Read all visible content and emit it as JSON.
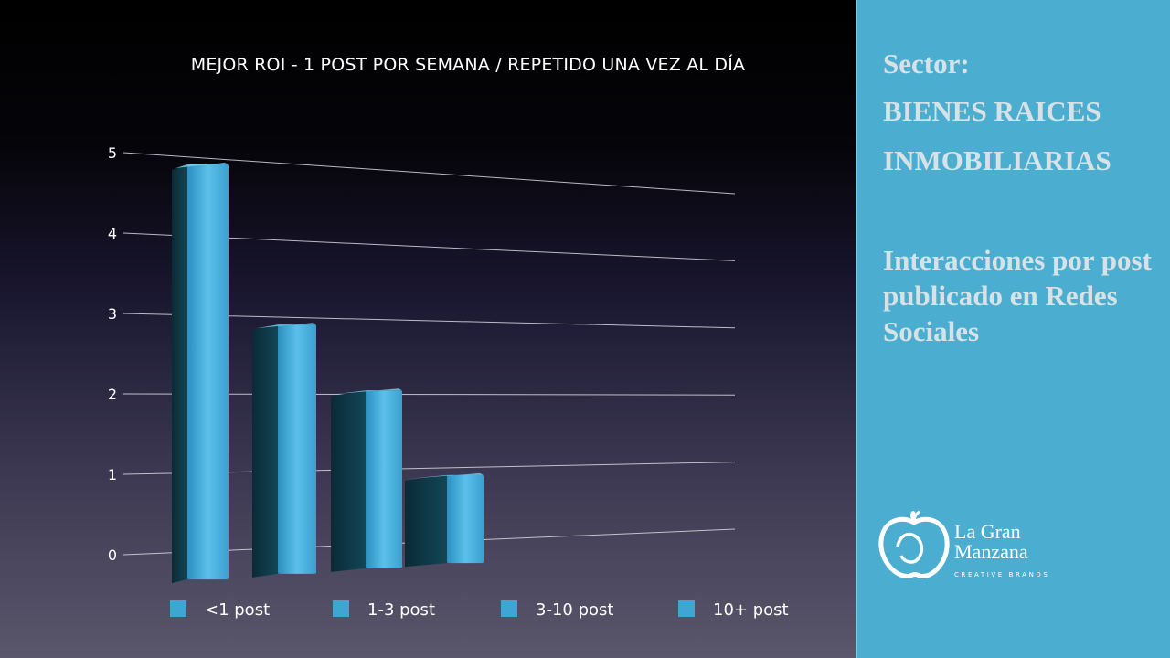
{
  "chart_data": {
    "type": "bar",
    "title": "MEJOR ROI - 1 POST POR SEMANA / REPETIDO UNA VEZ AL DÍA",
    "categories": [
      "<1 post",
      "1-3 post",
      "3-10 post",
      "10+ post"
    ],
    "values": [
      4.95,
      2.95,
      2.1,
      0.95
    ],
    "y_ticks": [
      "0",
      "1",
      "2",
      "3",
      "4",
      "5"
    ],
    "ylim": [
      0,
      5
    ],
    "grid": true,
    "legend": "bottom",
    "bar_color": "#3fa6d4"
  },
  "side_panel": {
    "line1": "Sector:",
    "line2": "BIENES RAICES",
    "line3": "INMOBILIARIAS",
    "description": "Interacciones por post publicado en Redes Sociales",
    "background": "#4badd0"
  },
  "logo": {
    "name_line1": "La Gran",
    "name_line2": "Manzana",
    "tagline": "CREATIVE BRANDS",
    "icon": "apple-icon"
  }
}
